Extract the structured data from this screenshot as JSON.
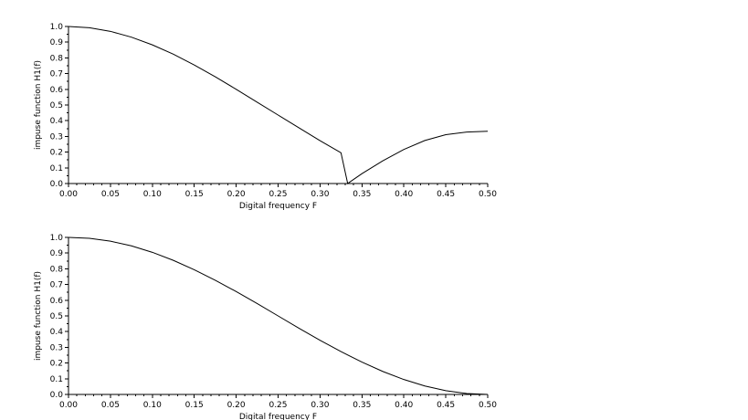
{
  "chart_data": [
    {
      "type": "line",
      "title": "",
      "xlabel": "Digital frequency F",
      "ylabel": "impuse function H1(f)",
      "xlim": [
        0,
        0.5
      ],
      "ylim": [
        0,
        1.0
      ],
      "grid": false,
      "x_ticks": [
        "0.00",
        "0.05",
        "0.10",
        "0.15",
        "0.20",
        "0.25",
        "0.30",
        "0.35",
        "0.40",
        "0.45",
        "0.50"
      ],
      "y_ticks": [
        "0.0",
        "0.1",
        "0.2",
        "0.3",
        "0.4",
        "0.5",
        "0.6",
        "0.7",
        "0.8",
        "0.9",
        "1.0"
      ],
      "series": [
        {
          "color": "#000000",
          "x": [
            0.0,
            0.025,
            0.05,
            0.075,
            0.1,
            0.125,
            0.15,
            0.175,
            0.2,
            0.225,
            0.25,
            0.275,
            0.3,
            0.325,
            0.333,
            0.35,
            0.375,
            0.4,
            0.425,
            0.45,
            0.475,
            0.5
          ],
          "y": [
            1.0,
            0.992,
            0.969,
            0.932,
            0.883,
            0.824,
            0.755,
            0.68,
            0.6,
            0.518,
            0.436,
            0.354,
            0.273,
            0.196,
            0.0,
            0.063,
            0.145,
            0.217,
            0.274,
            0.311,
            0.328,
            0.333
          ]
        }
      ]
    },
    {
      "type": "line",
      "title": "",
      "xlabel": "Digital frequency F",
      "ylabel": "impuse function H1(f)",
      "xlim": [
        0,
        0.5
      ],
      "ylim": [
        0,
        1.0
      ],
      "grid": false,
      "x_ticks": [
        "0.00",
        "0.05",
        "0.10",
        "0.15",
        "0.20",
        "0.25",
        "0.30",
        "0.35",
        "0.40",
        "0.45",
        "0.50"
      ],
      "y_ticks": [
        "0.0",
        "0.1",
        "0.2",
        "0.3",
        "0.4",
        "0.5",
        "0.6",
        "0.7",
        "0.8",
        "0.9",
        "1.0"
      ],
      "series": [
        {
          "color": "#000000",
          "x": [
            0.0,
            0.025,
            0.05,
            0.075,
            0.1,
            0.125,
            0.15,
            0.175,
            0.2,
            0.225,
            0.25,
            0.275,
            0.3,
            0.325,
            0.35,
            0.375,
            0.4,
            0.425,
            0.45,
            0.475,
            0.5
          ],
          "y": [
            1.0,
            0.994,
            0.976,
            0.946,
            0.905,
            0.854,
            0.794,
            0.727,
            0.655,
            0.579,
            0.5,
            0.421,
            0.345,
            0.273,
            0.206,
            0.146,
            0.095,
            0.054,
            0.024,
            0.006,
            0.0
          ]
        }
      ]
    }
  ]
}
